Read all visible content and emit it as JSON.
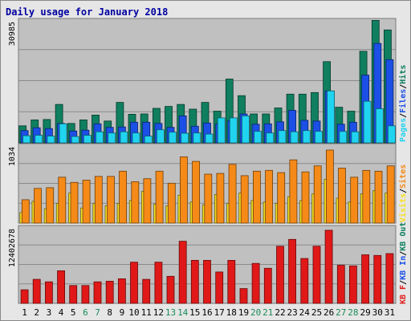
{
  "chart_data": {
    "type": "bar",
    "title": "Daily usage for January 2018",
    "categories": [
      "1",
      "2",
      "3",
      "4",
      "5",
      "6",
      "7",
      "8",
      "9",
      "10",
      "11",
      "12",
      "13",
      "14",
      "15",
      "16",
      "17",
      "18",
      "19",
      "20",
      "21",
      "22",
      "23",
      "24",
      "25",
      "26",
      "27",
      "28",
      "29",
      "30",
      "31"
    ],
    "weekend_days": [
      "6",
      "7",
      "13",
      "14",
      "20",
      "21",
      "27",
      "28"
    ],
    "grid": true,
    "panels": [
      {
        "id": "hits-files-pages",
        "axis_label": "30985",
        "ylim": [
          0,
          30985
        ],
        "series": [
          {
            "name": "Hits",
            "color": "#0f7f5f",
            "values": [
              4300,
              5800,
              5900,
              9700,
              4900,
              5800,
              7000,
              5500,
              10200,
              7200,
              7300,
              8700,
              9200,
              9700,
              8500,
              10200,
              8000,
              16100,
              11900,
              7300,
              7300,
              8800,
              12300,
              12300,
              12700,
              20500,
              9000,
              8000,
              23100,
              30900,
              28500
            ]
          },
          {
            "name": "Files",
            "color": "#1b4fe6",
            "values": [
              3100,
              3800,
              3600,
              4900,
              3000,
              3200,
              4800,
              3900,
              4000,
              5200,
              5200,
              4900,
              3900,
              6800,
              4200,
              5000,
              4800,
              5600,
              7300,
              4700,
              4800,
              5300,
              8200,
              5700,
              5500,
              13100,
              4700,
              5200,
              17100,
              25100,
              21000
            ]
          },
          {
            "name": "Pages",
            "color": "#20d4f0",
            "values": [
              1800,
              1900,
              1700,
              4800,
              1600,
              1900,
              2800,
              2500,
              2800,
              2500,
              1700,
              3300,
              2700,
              2400,
              2500,
              2200,
              6300,
              6300,
              6800,
              2900,
              2500,
              3100,
              2800,
              3100,
              2900,
              13100,
              2900,
              2800,
              10500,
              8600,
              4300
            ]
          }
        ]
      },
      {
        "id": "visits-sites",
        "axis_label": "1034",
        "ylim": [
          0,
          1034
        ],
        "series": [
          {
            "name": "Visits",
            "color": "#f5e020",
            "values": [
              140,
              290,
              190,
              260,
              400,
              200,
              260,
              230,
              260,
              300,
              420,
              250,
              230,
              370,
              280,
              240,
              380,
              260,
              400,
              300,
              280,
              260,
              350,
              300,
              390,
              580,
              330,
              280,
              390,
              430,
              400
            ]
          },
          {
            "name": "Sites",
            "color": "#f58a18",
            "values": [
              310,
              460,
              470,
              610,
              540,
              570,
              620,
              620,
              690,
              550,
              590,
              690,
              530,
              880,
              820,
              650,
              660,
              780,
              630,
              690,
              700,
              670,
              840,
              680,
              760,
              970,
              730,
              610,
              700,
              690,
              760
            ]
          }
        ]
      },
      {
        "id": "kb-in-out",
        "axis_label": "12402678",
        "ylim": [
          0,
          12402678
        ],
        "series": [
          {
            "name": "KB F",
            "color": "#e01818",
            "values": [
              2200000,
              3900000,
              3500000,
              5300000,
              2900000,
              2900000,
              3500000,
              3600000,
              4000000,
              6700000,
              3900000,
              6700000,
              4400000,
              10100000,
              7000000,
              7000000,
              5100000,
              7000000,
              2400000,
              6500000,
              5700000,
              9300000,
              10400000,
              7300000,
              9300000,
              11900000,
              6200000,
              6100000,
              7900000,
              7800000,
              8100000
            ]
          }
        ]
      }
    ],
    "right_legend": [
      {
        "text": "Pages",
        "color": "#20d4f0"
      },
      {
        "text": "Files",
        "color": "#1b4fe6"
      },
      {
        "text": "Hits",
        "color": "#0f7f5f"
      },
      {
        "text": "Visits",
        "color": "#f5e020"
      },
      {
        "text": "Sites",
        "color": "#f58a18"
      },
      {
        "text": "KB F",
        "color": "#e01818"
      },
      {
        "text": "KB In",
        "color": "#1b4fe6"
      },
      {
        "text": "KB Out",
        "color": "#0f7f5f"
      }
    ],
    "colors": {
      "weekday_label": "#000000",
      "weekend_label": "#1a8a5a",
      "title": "#0000a0",
      "panel_bg": "#c0c0c0"
    }
  }
}
